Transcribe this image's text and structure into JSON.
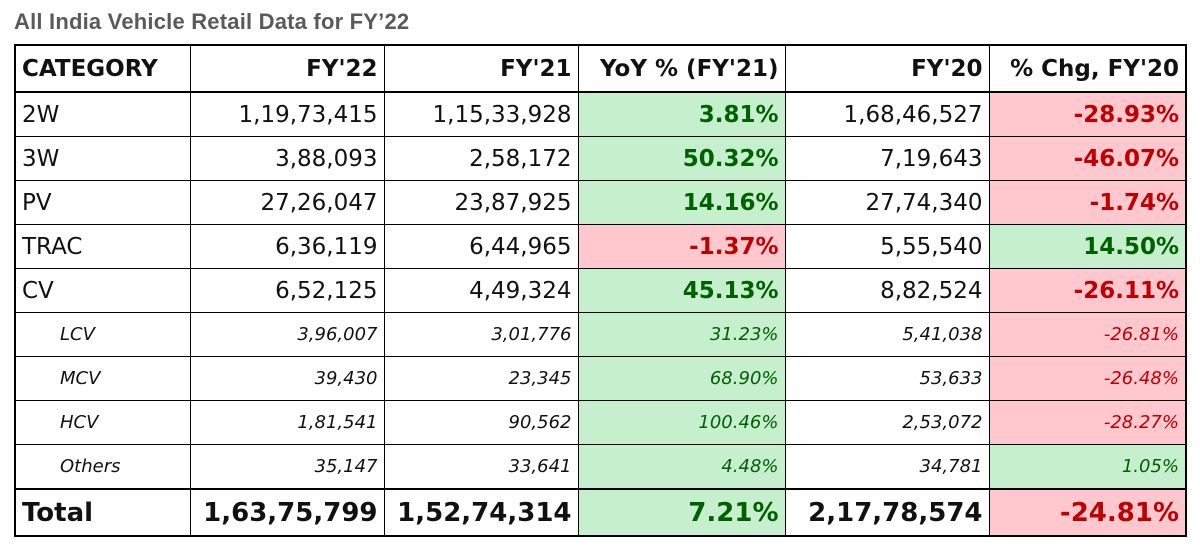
{
  "title": "All India Vehicle Retail Data for FY’22",
  "headers": [
    "CATEGORY",
    "FY'22",
    "FY'21",
    "YoY % (FY'21)",
    "FY'20",
    "% Chg, FY'20"
  ],
  "rows": [
    {
      "category": "2W",
      "fy22": "1,19,73,415",
      "fy21": "1,15,33,928",
      "yoy": "3.81%",
      "yoy_dir": "pos",
      "fy20": "1,68,46,527",
      "chg20": "-28.93%",
      "chg20_dir": "neg",
      "kind": "main"
    },
    {
      "category": "3W",
      "fy22": "3,88,093",
      "fy21": "2,58,172",
      "yoy": "50.32%",
      "yoy_dir": "pos",
      "fy20": "7,19,643",
      "chg20": "-46.07%",
      "chg20_dir": "neg",
      "kind": "main"
    },
    {
      "category": "PV",
      "fy22": "27,26,047",
      "fy21": "23,87,925",
      "yoy": "14.16%",
      "yoy_dir": "pos",
      "fy20": "27,74,340",
      "chg20": "-1.74%",
      "chg20_dir": "neg",
      "kind": "main"
    },
    {
      "category": "TRAC",
      "fy22": "6,36,119",
      "fy21": "6,44,965",
      "yoy": "-1.37%",
      "yoy_dir": "neg",
      "fy20": "5,55,540",
      "chg20": "14.50%",
      "chg20_dir": "pos",
      "kind": "main"
    },
    {
      "category": "CV",
      "fy22": "6,52,125",
      "fy21": "4,49,324",
      "yoy": "45.13%",
      "yoy_dir": "pos",
      "fy20": "8,82,524",
      "chg20": "-26.11%",
      "chg20_dir": "neg",
      "kind": "main"
    },
    {
      "category": "LCV",
      "fy22": "3,96,007",
      "fy21": "3,01,776",
      "yoy": "31.23%",
      "yoy_dir": "pos",
      "fy20": "5,41,038",
      "chg20": "-26.81%",
      "chg20_dir": "neg",
      "kind": "sub"
    },
    {
      "category": "MCV",
      "fy22": "39,430",
      "fy21": "23,345",
      "yoy": "68.90%",
      "yoy_dir": "pos",
      "fy20": "53,633",
      "chg20": "-26.48%",
      "chg20_dir": "neg",
      "kind": "sub"
    },
    {
      "category": "HCV",
      "fy22": "1,81,541",
      "fy21": "90,562",
      "yoy": "100.46%",
      "yoy_dir": "pos",
      "fy20": "2,53,072",
      "chg20": "-28.27%",
      "chg20_dir": "neg",
      "kind": "sub"
    },
    {
      "category": "Others",
      "fy22": "35,147",
      "fy21": "33,641",
      "yoy": "4.48%",
      "yoy_dir": "pos",
      "fy20": "34,781",
      "chg20": "1.05%",
      "chg20_dir": "pos",
      "kind": "sub"
    },
    {
      "category": "Total",
      "fy22": "1,63,75,799",
      "fy21": "1,52,74,314",
      "yoy": "7.21%",
      "yoy_dir": "pos",
      "fy20": "2,17,78,574",
      "chg20": "-24.81%",
      "chg20_dir": "neg",
      "kind": "total"
    }
  ],
  "colors": {
    "positive_fill": "#c6efce",
    "positive_text": "#006100",
    "negative_fill": "#ffc7ce",
    "negative_text": "#c00000",
    "title_text": "#5a5a5a"
  }
}
